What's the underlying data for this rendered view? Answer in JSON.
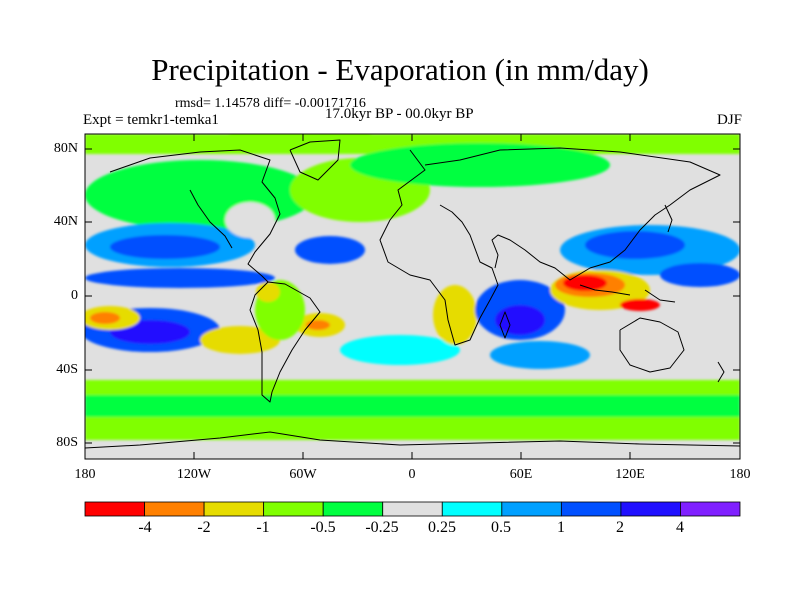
{
  "title": "Precipitation - Evaporation (in mm/day)",
  "stats": "rmsd= 1.14578 diff= -0.00171716",
  "experiment": "Expt = temkr1-temka1",
  "period": "17.0kyr BP - 00.0kyr BP",
  "season": "DJF",
  "lat_ticks": [
    "80N",
    "40N",
    "0",
    "40S",
    "80S"
  ],
  "lon_ticks": [
    "180",
    "120W",
    "60W",
    "0",
    "60E",
    "120E",
    "180"
  ],
  "colorbar": {
    "labels": [
      "-4",
      "-2",
      "-1",
      "-0.5",
      "-0.25",
      "0.25",
      "0.5",
      "1",
      "2",
      "4"
    ],
    "colors": [
      "#ff0000",
      "#ff8000",
      "#e6dc00",
      "#80ff00",
      "#00ff40",
      "#e0e0e0",
      "#00ffff",
      "#00a0ff",
      "#0050ff",
      "#2010ff",
      "#8020ff"
    ]
  },
  "colors": {
    "ocean_background": "#e0e0e0",
    "coastline": "#000000"
  }
}
